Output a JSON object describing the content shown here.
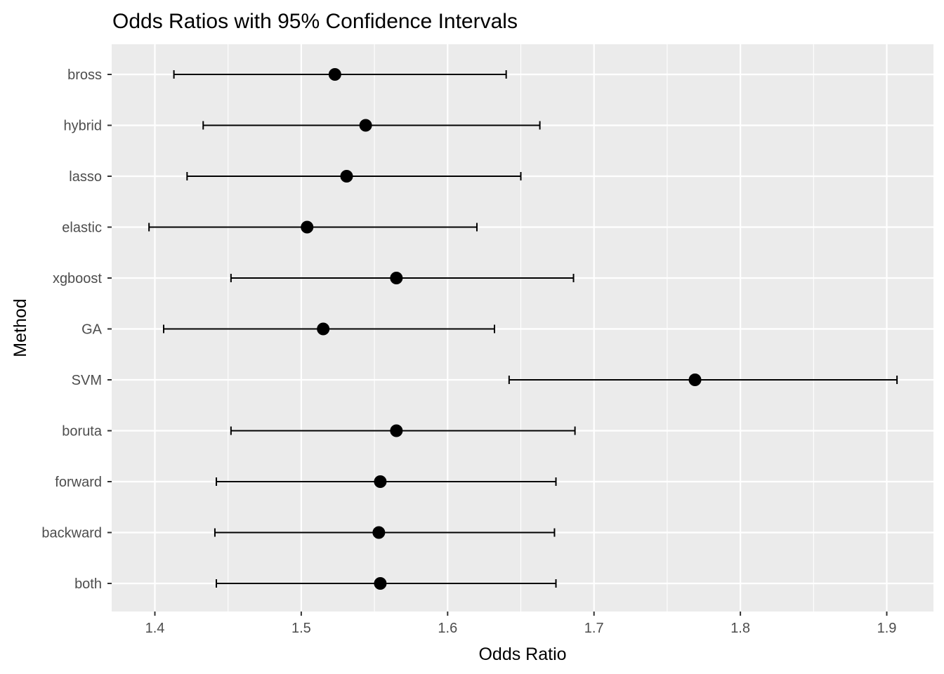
{
  "chart_data": {
    "type": "scatter",
    "title": "Odds Ratios with 95% Confidence Intervals",
    "xlabel": "Odds Ratio",
    "ylabel": "Method",
    "xlim": [
      1.37,
      1.93
    ],
    "x_ticks": [
      1.4,
      1.5,
      1.6,
      1.7,
      1.8,
      1.9
    ],
    "x_tick_labels": [
      "1.4",
      "1.5",
      "1.6",
      "1.7",
      "1.8",
      "1.9"
    ],
    "grid": true,
    "panel_background": "#ebebeb",
    "grid_color": "#ffffff",
    "point_color": "#000000",
    "methods": [
      {
        "name": "bross",
        "or": 1.523,
        "lower": 1.413,
        "upper": 1.64
      },
      {
        "name": "hybrid",
        "or": 1.544,
        "lower": 1.433,
        "upper": 1.663
      },
      {
        "name": "lasso",
        "or": 1.531,
        "lower": 1.422,
        "upper": 1.65
      },
      {
        "name": "elastic",
        "or": 1.504,
        "lower": 1.396,
        "upper": 1.62
      },
      {
        "name": "xgboost",
        "or": 1.565,
        "lower": 1.452,
        "upper": 1.686
      },
      {
        "name": "GA",
        "or": 1.515,
        "lower": 1.406,
        "upper": 1.632
      },
      {
        "name": "SVM",
        "or": 1.769,
        "lower": 1.642,
        "upper": 1.907
      },
      {
        "name": "boruta",
        "or": 1.565,
        "lower": 1.452,
        "upper": 1.687
      },
      {
        "name": "forward",
        "or": 1.554,
        "lower": 1.442,
        "upper": 1.674
      },
      {
        "name": "backward",
        "or": 1.553,
        "lower": 1.441,
        "upper": 1.673
      },
      {
        "name": "both",
        "or": 1.554,
        "lower": 1.442,
        "upper": 1.674
      }
    ]
  }
}
